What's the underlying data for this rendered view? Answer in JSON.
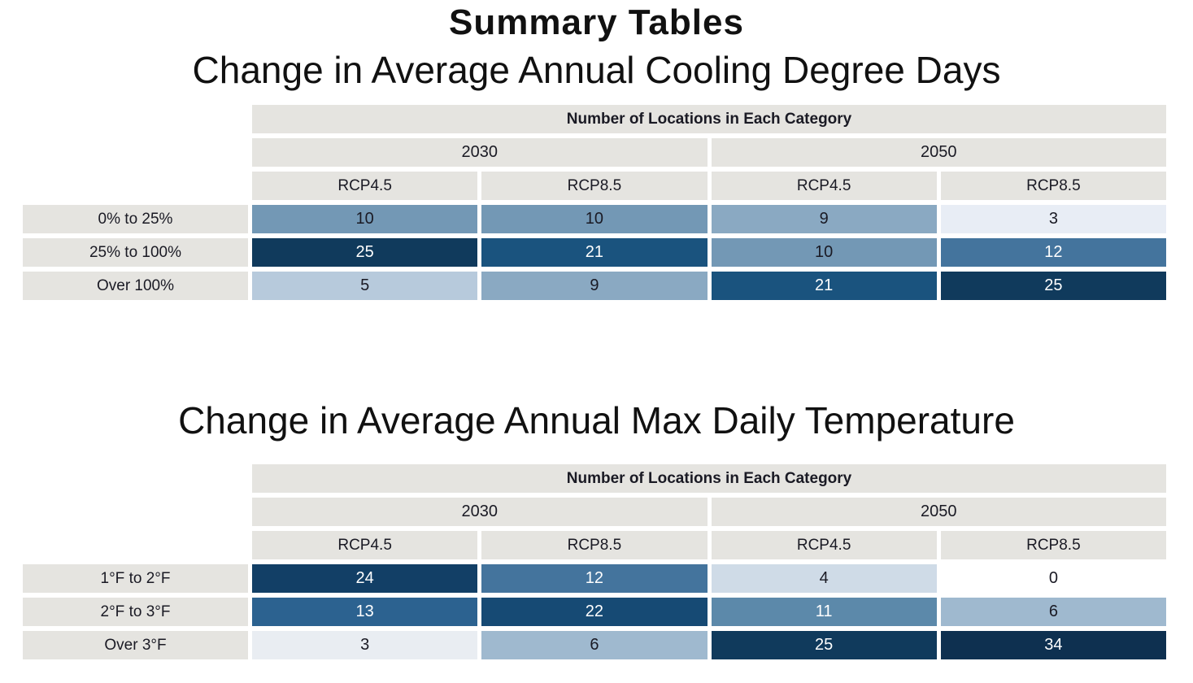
{
  "page": {
    "title": "Summary Tables",
    "background": "#ffffff"
  },
  "colors": {
    "header_bg": "#e5e4e0",
    "dark_text": "#1a1a24",
    "light_text": "#ffffff",
    "scale_min": "#ffffff",
    "scale_max": "#0e3050"
  },
  "tables": [
    {
      "title": "Change in Average Annual Cooling Degree Days",
      "header": "Number of Locations in Each Category",
      "year_groups": [
        "2030",
        "2050"
      ],
      "scenarios": [
        "RCP4.5",
        "RCP8.5",
        "RCP4.5",
        "RCP8.5"
      ],
      "rows": [
        {
          "label": "0% to 25%",
          "cells": [
            {
              "value": "10",
              "bg": "#7398b5",
              "fg": "#1a1a24"
            },
            {
              "value": "10",
              "bg": "#7398b5",
              "fg": "#1a1a24"
            },
            {
              "value": "9",
              "bg": "#8aa9c2",
              "fg": "#1a1a24"
            },
            {
              "value": "3",
              "bg": "#e8edf5",
              "fg": "#1a1a24"
            }
          ]
        },
        {
          "label": "25% to 100%",
          "cells": [
            {
              "value": "25",
              "bg": "#103a5c",
              "fg": "#ffffff"
            },
            {
              "value": "21",
              "bg": "#1a537e",
              "fg": "#ffffff"
            },
            {
              "value": "10",
              "bg": "#7398b5",
              "fg": "#1a1a24"
            },
            {
              "value": "12",
              "bg": "#44749d",
              "fg": "#ffffff"
            }
          ]
        },
        {
          "label": "Over 100%",
          "cells": [
            {
              "value": "5",
              "bg": "#b7cadc",
              "fg": "#1a1a24"
            },
            {
              "value": "9",
              "bg": "#8aa9c2",
              "fg": "#1a1a24"
            },
            {
              "value": "21",
              "bg": "#1a537e",
              "fg": "#ffffff"
            },
            {
              "value": "25",
              "bg": "#103a5c",
              "fg": "#ffffff"
            }
          ]
        }
      ]
    },
    {
      "title": "Change in Average Annual Max Daily Temperature",
      "header": "Number of Locations in Each Category",
      "year_groups": [
        "2030",
        "2050"
      ],
      "scenarios": [
        "RCP4.5",
        "RCP8.5",
        "RCP4.5",
        "RCP8.5"
      ],
      "rows": [
        {
          "label": "1°F to 2°F",
          "cells": [
            {
              "value": "24",
              "bg": "#123f66",
              "fg": "#ffffff"
            },
            {
              "value": "12",
              "bg": "#44749d",
              "fg": "#ffffff"
            },
            {
              "value": "4",
              "bg": "#cfdbe7",
              "fg": "#1a1a24"
            },
            {
              "value": "0",
              "bg": "#ffffff",
              "fg": "#1a1a24"
            }
          ]
        },
        {
          "label": "2°F to 3°F",
          "cells": [
            {
              "value": "13",
              "bg": "#2c6290",
              "fg": "#ffffff"
            },
            {
              "value": "22",
              "bg": "#164a74",
              "fg": "#ffffff"
            },
            {
              "value": "11",
              "bg": "#5c89aa",
              "fg": "#ffffff"
            },
            {
              "value": "6",
              "bg": "#9fb9cf",
              "fg": "#1a1a24"
            }
          ]
        },
        {
          "label": "Over 3°F",
          "cells": [
            {
              "value": "3",
              "bg": "#e9edf2",
              "fg": "#1a1a24"
            },
            {
              "value": "6",
              "bg": "#9fb9cf",
              "fg": "#1a1a24"
            },
            {
              "value": "25",
              "bg": "#103a5c",
              "fg": "#ffffff"
            },
            {
              "value": "34",
              "bg": "#0e3050",
              "fg": "#ffffff"
            }
          ]
        }
      ]
    }
  ],
  "chart_data": [
    {
      "type": "heatmap",
      "title": "Change in Average Annual Cooling Degree Days",
      "subtitle": "Number of Locations in Each Category",
      "columns": [
        "2030 RCP4.5",
        "2030 RCP8.5",
        "2050 RCP4.5",
        "2050 RCP8.5"
      ],
      "rows": [
        "0% to 25%",
        "25% to 100%",
        "Over 100%"
      ],
      "values": [
        [
          10,
          10,
          9,
          3
        ],
        [
          25,
          21,
          10,
          12
        ],
        [
          5,
          9,
          21,
          25
        ]
      ],
      "color_scale": "white-to-dark-navy, higher value = darker"
    },
    {
      "type": "heatmap",
      "title": "Change in Average Annual Max Daily Temperature",
      "subtitle": "Number of Locations in Each Category",
      "columns": [
        "2030 RCP4.5",
        "2030 RCP8.5",
        "2050 RCP4.5",
        "2050 RCP8.5"
      ],
      "rows": [
        "1°F to 2°F",
        "2°F to 3°F",
        "Over 3°F"
      ],
      "values": [
        [
          24,
          12,
          4,
          0
        ],
        [
          13,
          22,
          11,
          6
        ],
        [
          3,
          6,
          25,
          34
        ]
      ],
      "color_scale": "white-to-dark-navy, higher value = darker"
    }
  ]
}
